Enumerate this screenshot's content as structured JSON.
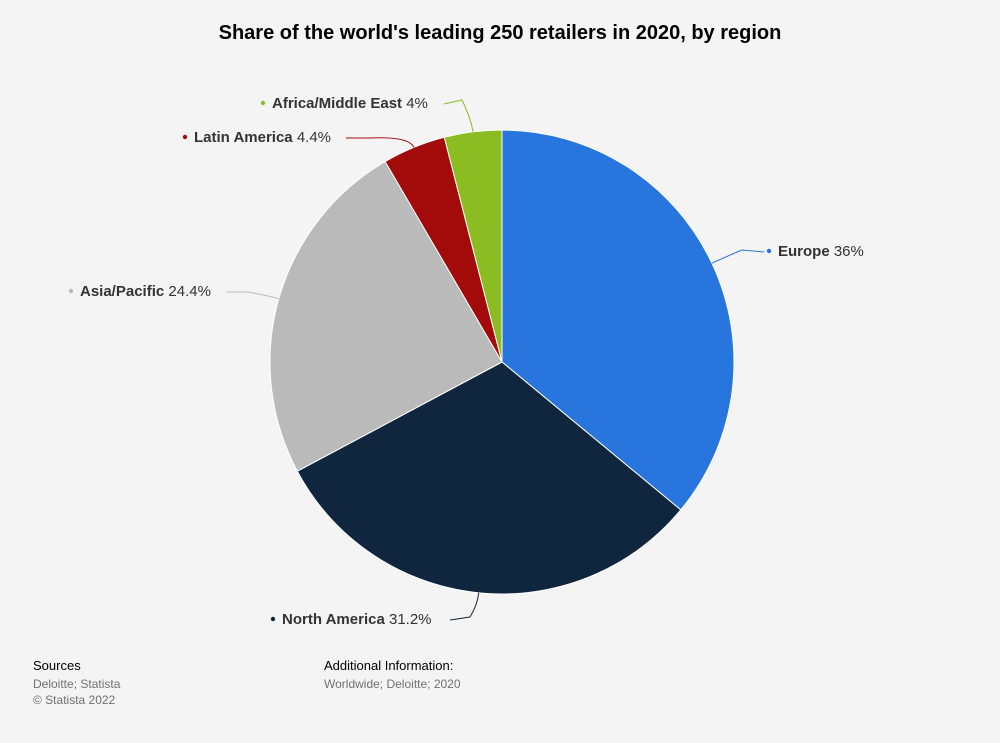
{
  "chart_data": {
    "type": "pie",
    "title": "Share of the world's leading 250 retailers in 2020, by region",
    "unit": "%",
    "slices": [
      {
        "name": "Europe",
        "value": 36,
        "label": "36%",
        "color": "#2876dd"
      },
      {
        "name": "North America",
        "value": 31.2,
        "label": "31.2%",
        "color": "#10263e"
      },
      {
        "name": "Asia/Pacific",
        "value": 24.4,
        "label": "24.4%",
        "color": "#bababa"
      },
      {
        "name": "Latin America",
        "value": 4.4,
        "label": "4.4%",
        "color": "#a30b0b"
      },
      {
        "name": "Africa/Middle East",
        "value": 4,
        "label": "4%",
        "color": "#8bbc21"
      }
    ]
  },
  "footer": {
    "sources_title": "Sources",
    "sources_lines": [
      "Deloitte; Statista",
      "© Statista 2022"
    ],
    "additional_title": "Additional Information:",
    "additional_lines": [
      "Worldwide; Deloitte; 2020"
    ]
  }
}
